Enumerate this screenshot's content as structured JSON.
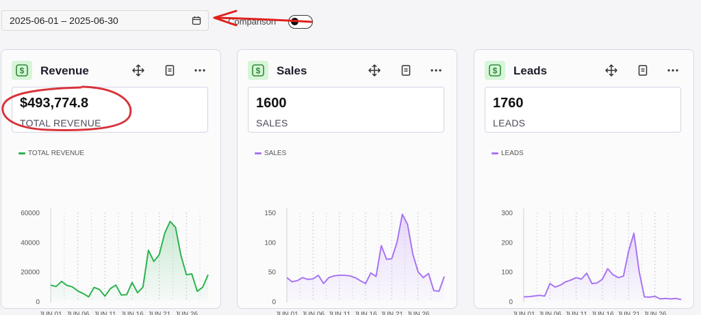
{
  "toolbar": {
    "date_range": "2025-06-01 – 2025-06-30",
    "comparison_label": "Comparison",
    "comparison_enabled": false
  },
  "cards": [
    {
      "title": "Revenue",
      "value": "$493,774.8",
      "label": "TOTAL REVENUE",
      "color": "#2bb24c",
      "chart_data": {
        "type": "area",
        "series": [
          {
            "name": "TOTAL REVENUE",
            "values": [
              11000,
              10000,
              13500,
              10800,
              9800,
              7000,
              5200,
              3000,
              9400,
              8000,
              3500,
              8600,
              11000,
              4300,
              4500,
              12800,
              5800,
              9600,
              34500,
              27000,
              31500,
              46000,
              54000,
              50000,
              31000,
              18000,
              18500,
              6800,
              9500,
              18000
            ]
          }
        ],
        "x": [
          1,
          2,
          3,
          4,
          5,
          6,
          7,
          8,
          9,
          10,
          11,
          12,
          13,
          14,
          15,
          16,
          17,
          18,
          19,
          20,
          21,
          22,
          23,
          24,
          25,
          26,
          27,
          28,
          29,
          30
        ],
        "x_ticks": [
          "JUN 01",
          "JUN 06",
          "JUN 11",
          "JUN 16",
          "JUN 21",
          "JUN 26"
        ],
        "y_ticks": [
          "0",
          "20000",
          "40000",
          "60000"
        ],
        "ylim": [
          0,
          60000
        ]
      }
    },
    {
      "title": "Sales",
      "value": "1600",
      "label": "SALES",
      "color": "#a774f2",
      "chart_data": {
        "type": "area",
        "series": [
          {
            "name": "SALES",
            "values": [
              40,
              33,
              35,
              40,
              37,
              38,
              44,
              30,
              40,
              43,
              44,
              44,
              43,
              40,
              35,
              30,
              48,
              42,
              94,
              71,
              72,
              100,
              147,
              130,
              80,
              50,
              40,
              47,
              18,
              17,
              42
            ]
          }
        ],
        "x": [
          1,
          2,
          3,
          4,
          5,
          6,
          7,
          8,
          9,
          10,
          11,
          12,
          13,
          14,
          15,
          16,
          17,
          18,
          19,
          20,
          21,
          22,
          23,
          24,
          25,
          26,
          27,
          28,
          29,
          30,
          31
        ],
        "x_ticks": [
          "JUN 01",
          "JUN 06",
          "JUN 11",
          "JUN 16",
          "JUN 21",
          "JUN 26"
        ],
        "y_ticks": [
          "0",
          "50",
          "100",
          "150"
        ],
        "ylim": [
          0,
          150
        ]
      }
    },
    {
      "title": "Leads",
      "value": "1760",
      "label": "LEADS",
      "color": "#a774f2",
      "chart_data": {
        "type": "area",
        "series": [
          {
            "name": "LEADS",
            "values": [
              15,
              16,
              18,
              20,
              18,
              60,
              48,
              55,
              66,
              72,
              80,
              75,
              95,
              60,
              62,
              75,
              110,
              90,
              80,
              85,
              170,
              230,
              100,
              15,
              14,
              17,
              8,
              10,
              8,
              10,
              6
            ]
          }
        ],
        "x": [
          1,
          2,
          3,
          4,
          5,
          6,
          7,
          8,
          9,
          10,
          11,
          12,
          13,
          14,
          15,
          16,
          17,
          18,
          19,
          20,
          21,
          22,
          23,
          24,
          25,
          26,
          27,
          28,
          29,
          30,
          31
        ],
        "x_ticks": [
          "JUN 01",
          "JUN 06",
          "JUN 11",
          "JUN 16",
          "JUN 21",
          "JUN 26"
        ],
        "y_ticks": [
          "0",
          "100",
          "200",
          "300"
        ],
        "ylim": [
          0,
          300
        ]
      }
    }
  ],
  "icons": {
    "badge": "dollar-icon",
    "move": "move-icon",
    "doc": "document-icon",
    "more": "more-icon",
    "calendar": "calendar-icon"
  },
  "annotations": {
    "arrow_color": "#e0201c",
    "circle_color": "#d8333a"
  }
}
